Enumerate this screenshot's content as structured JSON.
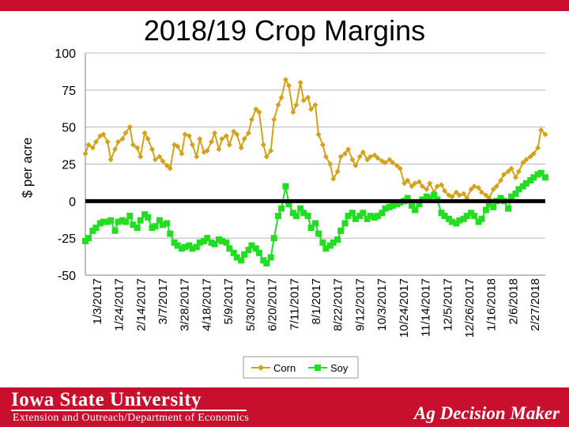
{
  "header": {
    "title": "2018/19 Crop Margins"
  },
  "footer": {
    "university": "Iowa State University",
    "department": "Extension and Outreach/Department of Economics",
    "brand": "Ag Decision Maker"
  },
  "colors": {
    "brand_red": "#c8102e",
    "corn": "#d4a21a",
    "soy": "#22dd22",
    "zero_line": "#000000"
  },
  "chart_data": {
    "type": "line",
    "title": "2018/19 Crop Margins",
    "ylabel": "$ per acre",
    "xlabel": "",
    "ylim": [
      -50,
      100
    ],
    "yticks": [
      100,
      75,
      50,
      25,
      0,
      -25,
      -50
    ],
    "yticklabels": [
      "100",
      "75",
      "50",
      "25",
      "0",
      "-25",
      "-50"
    ],
    "xlim": [
      "2017-01-03",
      "2018-03-13"
    ],
    "xticklabels": [
      "1/3/2017",
      "1/24/2017",
      "2/14/2017",
      "3/7/2017",
      "3/28/2017",
      "4/18/2017",
      "5/9/2017",
      "5/30/2017",
      "6/20/2017",
      "7/11/2017",
      "8/1/2017",
      "8/22/2017",
      "9/12/2017",
      "10/3/2017",
      "10/24/2017",
      "11/14/2017",
      "12/5/2017",
      "12/26/2017",
      "1/16/2018",
      "2/6/2018",
      "2/27/2018"
    ],
    "grid": true,
    "legend": "bottom-center",
    "series": [
      {
        "name": "Corn",
        "color": "#d4a21a",
        "x": [
          "2017-01-03",
          "2017-01-06",
          "2017-01-10",
          "2017-01-13",
          "2017-01-17",
          "2017-01-20",
          "2017-01-24",
          "2017-01-27",
          "2017-01-31",
          "2017-02-03",
          "2017-02-07",
          "2017-02-10",
          "2017-02-14",
          "2017-02-17",
          "2017-02-21",
          "2017-02-24",
          "2017-02-28",
          "2017-03-03",
          "2017-03-07",
          "2017-03-10",
          "2017-03-14",
          "2017-03-17",
          "2017-03-21",
          "2017-03-24",
          "2017-03-28",
          "2017-03-31",
          "2017-04-04",
          "2017-04-07",
          "2017-04-11",
          "2017-04-14",
          "2017-04-18",
          "2017-04-21",
          "2017-04-25",
          "2017-04-28",
          "2017-05-02",
          "2017-05-05",
          "2017-05-09",
          "2017-05-12",
          "2017-05-16",
          "2017-05-19",
          "2017-05-23",
          "2017-05-26",
          "2017-05-30",
          "2017-06-02",
          "2017-06-06",
          "2017-06-09",
          "2017-06-13",
          "2017-06-16",
          "2017-06-20",
          "2017-06-23",
          "2017-06-27",
          "2017-06-30",
          "2017-07-04",
          "2017-07-07",
          "2017-07-11",
          "2017-07-14",
          "2017-07-18",
          "2017-07-21",
          "2017-07-25",
          "2017-07-28",
          "2017-08-01",
          "2017-08-04",
          "2017-08-08",
          "2017-08-11",
          "2017-08-15",
          "2017-08-18",
          "2017-08-22",
          "2017-08-25",
          "2017-08-29",
          "2017-09-01",
          "2017-09-05",
          "2017-09-08",
          "2017-09-12",
          "2017-09-15",
          "2017-09-19",
          "2017-09-22",
          "2017-09-26",
          "2017-09-29",
          "2017-10-03",
          "2017-10-06",
          "2017-10-10",
          "2017-10-13",
          "2017-10-17",
          "2017-10-20",
          "2017-10-24",
          "2017-10-27",
          "2017-10-31",
          "2017-11-03",
          "2017-11-07",
          "2017-11-10",
          "2017-11-14",
          "2017-11-17",
          "2017-11-21",
          "2017-11-24",
          "2017-11-28",
          "2017-12-01",
          "2017-12-05",
          "2017-12-08",
          "2017-12-12",
          "2017-12-15",
          "2017-12-19",
          "2017-12-22",
          "2017-12-26",
          "2017-12-29",
          "2018-01-02",
          "2018-01-05",
          "2018-01-09",
          "2018-01-12",
          "2018-01-16",
          "2018-01-19",
          "2018-01-23",
          "2018-01-26",
          "2018-01-30",
          "2018-02-02",
          "2018-02-06",
          "2018-02-09",
          "2018-02-13",
          "2018-02-16",
          "2018-02-20",
          "2018-02-23",
          "2018-02-27",
          "2018-03-02",
          "2018-03-06",
          "2018-03-09",
          "2018-03-13"
        ],
        "values": [
          32,
          38,
          36,
          40,
          44,
          45,
          40,
          28,
          35,
          40,
          42,
          46,
          50,
          38,
          36,
          30,
          46,
          42,
          35,
          28,
          30,
          27,
          24,
          22,
          38,
          37,
          32,
          45,
          44,
          38,
          30,
          42,
          33,
          34,
          40,
          46,
          35,
          42,
          44,
          38,
          47,
          45,
          36,
          42,
          46,
          55,
          62,
          60,
          38,
          30,
          34,
          55,
          65,
          70,
          82,
          78,
          60,
          65,
          80,
          68,
          70,
          62,
          65,
          45,
          38,
          30,
          25,
          15,
          20,
          30,
          32,
          35,
          28,
          24,
          30,
          33,
          28,
          30,
          31,
          29,
          27,
          26,
          28,
          26,
          24,
          22,
          12,
          14,
          10,
          12,
          13,
          10,
          8,
          12,
          6,
          10,
          11,
          7,
          4,
          3,
          6,
          4,
          5,
          2,
          8,
          10,
          9,
          6,
          4,
          2,
          8,
          10,
          14,
          18,
          20,
          22,
          16,
          20,
          26,
          28,
          30,
          32,
          36,
          48,
          45
        ]
      },
      {
        "name": "Soy",
        "color": "#22dd22",
        "x": [
          "2017-01-03",
          "2017-01-06",
          "2017-01-10",
          "2017-01-13",
          "2017-01-17",
          "2017-01-20",
          "2017-01-24",
          "2017-01-27",
          "2017-01-31",
          "2017-02-03",
          "2017-02-07",
          "2017-02-10",
          "2017-02-14",
          "2017-02-17",
          "2017-02-21",
          "2017-02-24",
          "2017-02-28",
          "2017-03-03",
          "2017-03-07",
          "2017-03-10",
          "2017-03-14",
          "2017-03-17",
          "2017-03-21",
          "2017-03-24",
          "2017-03-28",
          "2017-03-31",
          "2017-04-04",
          "2017-04-07",
          "2017-04-11",
          "2017-04-14",
          "2017-04-18",
          "2017-04-21",
          "2017-04-25",
          "2017-04-28",
          "2017-05-02",
          "2017-05-05",
          "2017-05-09",
          "2017-05-12",
          "2017-05-16",
          "2017-05-19",
          "2017-05-23",
          "2017-05-26",
          "2017-05-30",
          "2017-06-02",
          "2017-06-06",
          "2017-06-09",
          "2017-06-13",
          "2017-06-16",
          "2017-06-20",
          "2017-06-23",
          "2017-06-27",
          "2017-06-30",
          "2017-07-04",
          "2017-07-07",
          "2017-07-11",
          "2017-07-14",
          "2017-07-18",
          "2017-07-21",
          "2017-07-25",
          "2017-07-28",
          "2017-08-01",
          "2017-08-04",
          "2017-08-08",
          "2017-08-11",
          "2017-08-15",
          "2017-08-18",
          "2017-08-22",
          "2017-08-25",
          "2017-08-29",
          "2017-09-01",
          "2017-09-05",
          "2017-09-08",
          "2017-09-12",
          "2017-09-15",
          "2017-09-19",
          "2017-09-22",
          "2017-09-26",
          "2017-09-29",
          "2017-10-03",
          "2017-10-06",
          "2017-10-10",
          "2017-10-13",
          "2017-10-17",
          "2017-10-20",
          "2017-10-24",
          "2017-10-27",
          "2017-10-31",
          "2017-11-03",
          "2017-11-07",
          "2017-11-10",
          "2017-11-14",
          "2017-11-17",
          "2017-11-21",
          "2017-11-24",
          "2017-11-28",
          "2017-12-01",
          "2017-12-05",
          "2017-12-08",
          "2017-12-12",
          "2017-12-15",
          "2017-12-19",
          "2017-12-22",
          "2017-12-26",
          "2017-12-29",
          "2018-01-02",
          "2018-01-05",
          "2018-01-09",
          "2018-01-12",
          "2018-01-16",
          "2018-01-19",
          "2018-01-23",
          "2018-01-26",
          "2018-01-30",
          "2018-02-02",
          "2018-02-06",
          "2018-02-09",
          "2018-02-13",
          "2018-02-16",
          "2018-02-20",
          "2018-02-23",
          "2018-02-27",
          "2018-03-02",
          "2018-03-06",
          "2018-03-09",
          "2018-03-13"
        ],
        "values": [
          -27,
          -25,
          -20,
          -18,
          -15,
          -14,
          -14,
          -13,
          -20,
          -14,
          -13,
          -14,
          -10,
          -16,
          -18,
          -13,
          -9,
          -11,
          -18,
          -17,
          -13,
          -16,
          -15,
          -22,
          -28,
          -30,
          -32,
          -31,
          -30,
          -32,
          -31,
          -28,
          -27,
          -25,
          -28,
          -29,
          -26,
          -27,
          -28,
          -32,
          -35,
          -38,
          -40,
          -36,
          -33,
          -30,
          -32,
          -35,
          -40,
          -42,
          -38,
          -25,
          -10,
          -5,
          10,
          -2,
          -8,
          -10,
          -5,
          -8,
          -10,
          -18,
          -15,
          -22,
          -28,
          -32,
          -30,
          -28,
          -26,
          -20,
          -15,
          -10,
          -8,
          -12,
          -10,
          -8,
          -12,
          -10,
          -11,
          -10,
          -8,
          -5,
          -4,
          -3,
          -2,
          -1,
          0,
          2,
          -3,
          -6,
          -2,
          1,
          3,
          2,
          4,
          1,
          -8,
          -10,
          -12,
          -14,
          -15,
          -13,
          -12,
          -10,
          -8,
          -10,
          -14,
          -12,
          -6,
          -2,
          -4,
          0,
          2,
          0,
          -5,
          3,
          5,
          8,
          10,
          12,
          14,
          16,
          18,
          19,
          16
        ]
      }
    ]
  }
}
